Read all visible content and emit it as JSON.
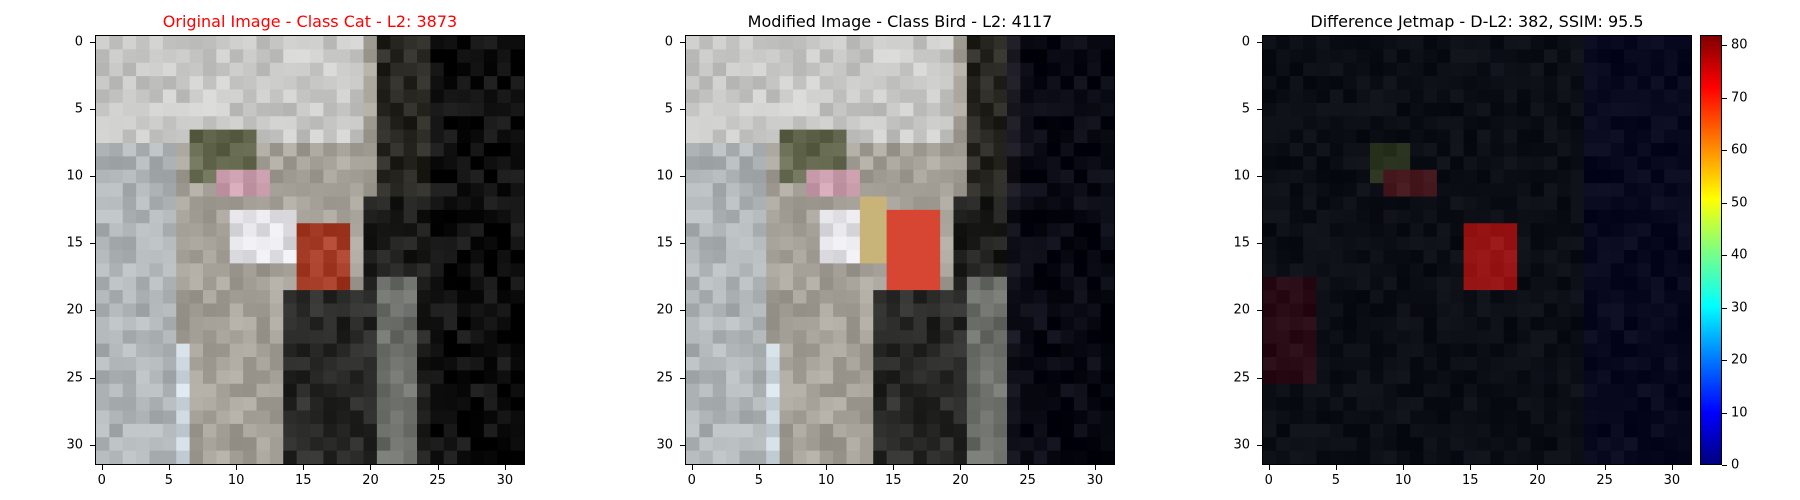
{
  "chart_data": [
    {
      "type": "heatmap",
      "title": "Original Image - Class Cat - L2: 3873",
      "title_color": "#ff0000",
      "xlim": [
        -0.5,
        31.5
      ],
      "ylim": [
        31.5,
        -0.5
      ],
      "x_ticks": [
        "0",
        "5",
        "10",
        "15",
        "20",
        "25",
        "30"
      ],
      "y_ticks": [
        "0",
        "5",
        "10",
        "15",
        "20",
        "25",
        "30"
      ]
    },
    {
      "type": "heatmap",
      "title": "Modified Image - Class Bird - L2: 4117",
      "title_color": "#000000",
      "xlim": [
        -0.5,
        31.5
      ],
      "ylim": [
        31.5,
        -0.5
      ],
      "x_ticks": [
        "0",
        "5",
        "10",
        "15",
        "20",
        "25",
        "30"
      ],
      "y_ticks": [
        "0",
        "5",
        "10",
        "15",
        "20",
        "25",
        "30"
      ]
    },
    {
      "type": "heatmap",
      "title": "Difference Jetmap - D-L2: 382, SSIM: 95.5",
      "title_color": "#000000",
      "xlim": [
        -0.5,
        31.5
      ],
      "ylim": [
        31.5,
        -0.5
      ],
      "x_ticks": [
        "0",
        "5",
        "10",
        "15",
        "20",
        "25",
        "30"
      ],
      "y_ticks": [
        "0",
        "5",
        "10",
        "15",
        "20",
        "25",
        "30"
      ],
      "colorbar": {
        "colormap": "jet",
        "range": [
          0,
          82
        ],
        "ticks": [
          "0",
          "10",
          "20",
          "30",
          "40",
          "50",
          "60",
          "70",
          "80"
        ]
      }
    }
  ]
}
